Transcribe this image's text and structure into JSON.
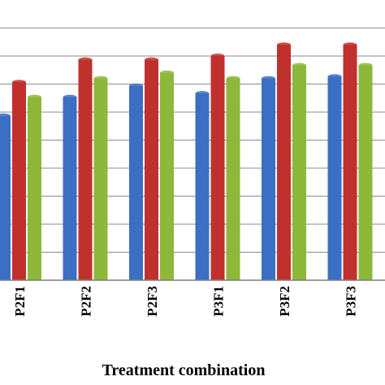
{
  "chart_data": {
    "type": "bar",
    "title": "",
    "xlabel": "Treatment combination",
    "ylabel": "",
    "categories": [
      "P2F1",
      "P2F2",
      "P2F3",
      "P3F1",
      "P3F2",
      "P3F3"
    ],
    "series": [
      {
        "color": "#3b6fc4",
        "values": [
          44,
          49,
          52,
          50,
          54,
          54.5
        ]
      },
      {
        "color": "#c0312e",
        "values": [
          53,
          59,
          59,
          60,
          63,
          63
        ]
      },
      {
        "color": "#8db83a",
        "values": [
          49,
          54,
          55.5,
          54,
          57.5,
          57.5
        ]
      }
    ],
    "ylim": [
      0,
      75
    ],
    "grid": true,
    "legend": "none"
  }
}
